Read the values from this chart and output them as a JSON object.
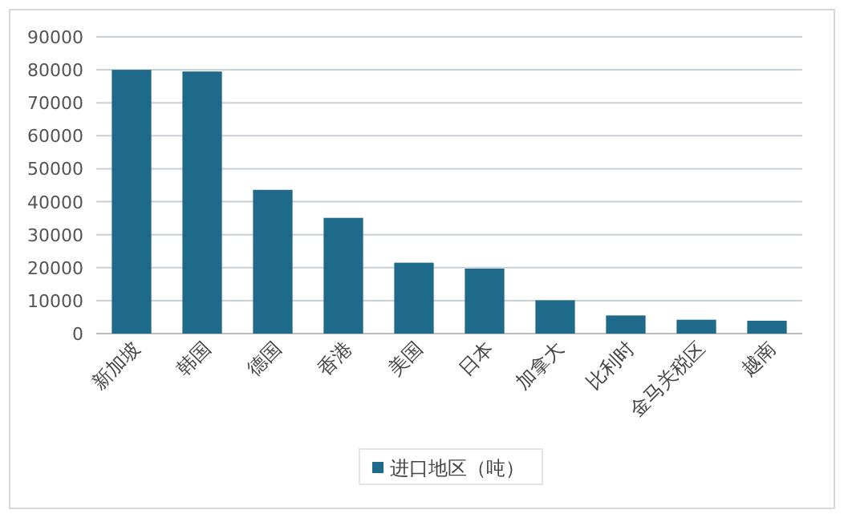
{
  "chart_data": {
    "type": "bar",
    "categories": [
      "新加坡",
      "韩国",
      "德国",
      "香港",
      "美国",
      "日本",
      "加拿大",
      "比利时",
      "金马关税区",
      "越南"
    ],
    "series": [
      {
        "name": "进口地区（吨）",
        "color": "#1f6a8a",
        "values": [
          80000,
          79500,
          43600,
          35100,
          21500,
          19700,
          10100,
          5500,
          4200,
          3900
        ]
      }
    ],
    "ylim": [
      0,
      90000
    ],
    "yticks": [
      0,
      10000,
      20000,
      30000,
      40000,
      50000,
      60000,
      70000,
      80000,
      90000
    ],
    "grid": "y",
    "legend": "bottom"
  }
}
